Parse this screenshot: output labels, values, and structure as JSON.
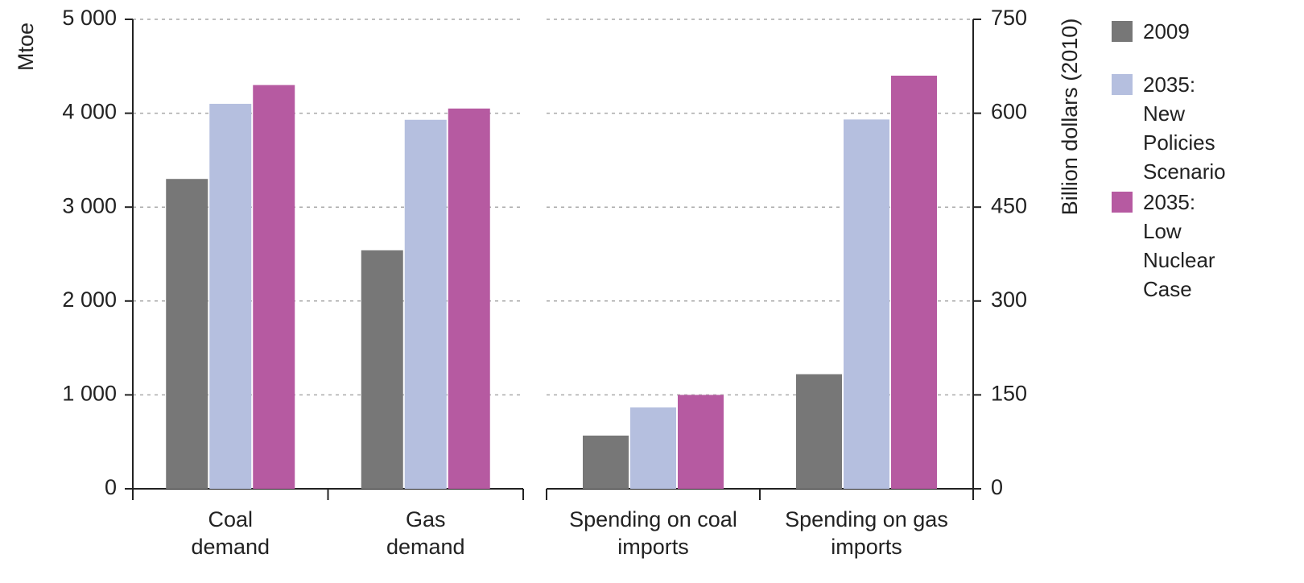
{
  "chart_data": [
    {
      "type": "bar",
      "y_label": "Mtoe",
      "categories": [
        "Coal demand",
        "Gas demand"
      ],
      "series": [
        {
          "name": "2009",
          "color": "#777777",
          "values": [
            3300,
            2540
          ]
        },
        {
          "name": "2035: New Policies Scenario",
          "color": "#b5bfdf",
          "values": [
            4100,
            3930
          ]
        },
        {
          "name": "2035: Low Nuclear Case",
          "color": "#b65aa1",
          "values": [
            4300,
            4050
          ]
        }
      ],
      "ylim": [
        0,
        5000
      ],
      "yticks": [
        0,
        {
          "value": 1000,
          "label": "1 000"
        },
        {
          "value": 2000,
          "label": "2 000"
        },
        {
          "value": 3000,
          "label": "3 000"
        },
        {
          "value": 4000,
          "label": "4 000"
        },
        {
          "value": 5000,
          "label": "5 000"
        }
      ],
      "grid": true
    },
    {
      "type": "bar",
      "y2_label": "Billion dollars (2010)",
      "categories": [
        "Spending on coal imports",
        "Spending on gas imports"
      ],
      "series": [
        {
          "color": "#777777",
          "values": [
            85,
            183
          ],
          "axis": "y2"
        },
        {
          "color": "#b5bfdf",
          "values": [
            130,
            590
          ],
          "axis": "y2"
        },
        {
          "color": "#b65aa1",
          "values": [
            150,
            660
          ],
          "axis": "y2"
        }
      ],
      "y2lim": [
        0,
        750
      ],
      "y2ticks": [
        0,
        150,
        300,
        450,
        600,
        750
      ],
      "grid": true
    }
  ]
}
